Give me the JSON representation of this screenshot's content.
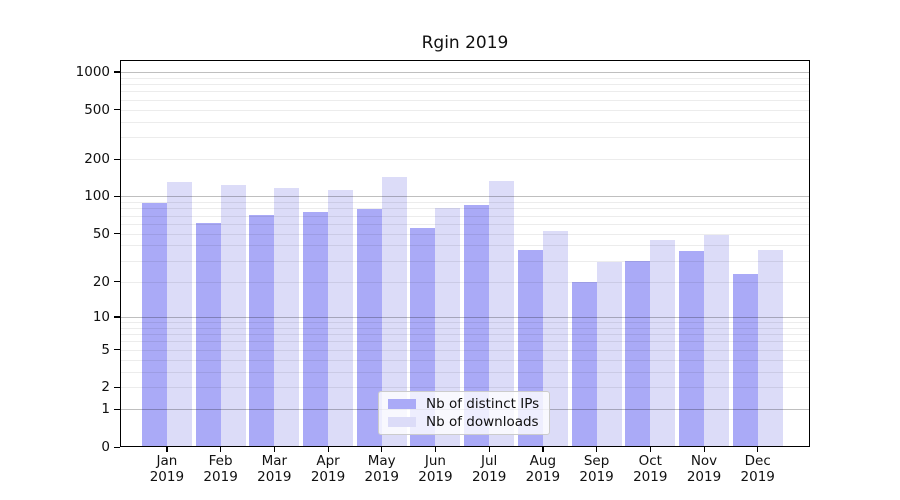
{
  "chart_data": {
    "type": "bar",
    "title": "Rgin 2019",
    "categories": [
      "Jan",
      "Feb",
      "Mar",
      "Apr",
      "May",
      "Jun",
      "Jul",
      "Aug",
      "Sep",
      "Oct",
      "Nov",
      "Dec"
    ],
    "category_year": "2019",
    "series": [
      {
        "name": "Nb of distinct IPs",
        "color": "#aaaaf7",
        "values": [
          89,
          61,
          71,
          75,
          79,
          56,
          85,
          37,
          20,
          30,
          36,
          23
        ]
      },
      {
        "name": "Nb of downloads",
        "color": "#dcdcf8",
        "values": [
          131,
          124,
          118,
          113,
          143,
          81,
          134,
          52,
          29,
          44,
          49,
          37
        ]
      }
    ],
    "yscale": "log10(value+1)",
    "ylim": [
      0,
      1250
    ],
    "yticks": [
      0,
      1,
      2,
      5,
      10,
      20,
      50,
      100,
      200,
      500,
      1000
    ],
    "minor_gridlines": [
      2,
      3,
      4,
      5,
      6,
      7,
      8,
      9,
      20,
      30,
      40,
      50,
      60,
      70,
      80,
      90,
      200,
      300,
      400,
      500,
      600,
      700,
      800,
      900
    ],
    "major_gridlines": [
      1,
      10,
      100,
      1000
    ],
    "grid": "horizontal",
    "legend": {
      "position": "bottom-center",
      "entries": [
        "Nb of distinct IPs",
        "Nb of downloads"
      ]
    },
    "axis_color": "#000000"
  }
}
